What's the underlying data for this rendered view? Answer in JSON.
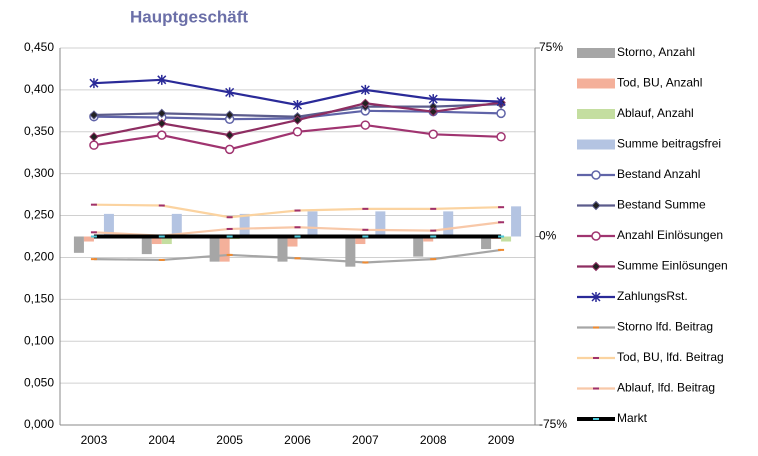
{
  "chart_data": {
    "type": "bar_line",
    "title": "Hauptgeschäft",
    "categories": [
      "2003",
      "2004",
      "2005",
      "2006",
      "2007",
      "2008",
      "2009"
    ],
    "ylim": [
      0,
      0.45
    ],
    "yticks": [
      {
        "value": 0,
        "label": "0,000"
      },
      {
        "value": 0.05,
        "label": "0,050"
      },
      {
        "value": 0.1,
        "label": "0,100"
      },
      {
        "value": 0.15,
        "label": "0,150"
      },
      {
        "value": 0.2,
        "label": "0,200"
      },
      {
        "value": 0.25,
        "label": "0,250"
      },
      {
        "value": 0.3,
        "label": "0,300"
      },
      {
        "value": 0.35,
        "label": "0,350"
      },
      {
        "value": 0.4,
        "label": "0,400"
      },
      {
        "value": 0.45,
        "label": "0,450"
      }
    ],
    "y2lim": [
      -75,
      75
    ],
    "y2ticks": [
      {
        "value": -75,
        "label": "-75%"
      },
      {
        "value": 0,
        "label": "0%"
      },
      {
        "value": 75,
        "label": "75%"
      }
    ],
    "grid": true,
    "legend": "right",
    "series": [
      {
        "name": "Storno, Anzahl",
        "type": "bar",
        "axis": "y2",
        "color": "#a6a6a6",
        "values": [
          -6.5,
          -7,
          -10,
          -10,
          -12,
          -8,
          -5
        ]
      },
      {
        "name": "Tod, BU, Anzahl",
        "type": "bar",
        "axis": "y2",
        "color": "#f4b09a",
        "values": [
          -2,
          -3,
          -10,
          -4,
          -3,
          -2,
          -1
        ]
      },
      {
        "name": "Ablauf, Anzahl",
        "type": "bar",
        "axis": "y2",
        "color": "#c4dea0",
        "values": [
          -0.5,
          -3,
          -1,
          0.5,
          0,
          0,
          -2
        ]
      },
      {
        "name": "Summe beitragsfrei",
        "type": "bar",
        "axis": "y2",
        "color": "#b4c4e2",
        "values": [
          9,
          9,
          9,
          10,
          10,
          10,
          12
        ]
      },
      {
        "name": "Bestand Anzahl",
        "type": "line",
        "marker": "circle",
        "color": "#6064a8",
        "values": [
          0.368,
          0.367,
          0.365,
          0.366,
          0.375,
          0.374,
          0.372
        ]
      },
      {
        "name": "Bestand Summe",
        "type": "line",
        "marker": "diamond",
        "color": "#5c5c8c",
        "values": [
          0.37,
          0.372,
          0.37,
          0.368,
          0.38,
          0.38,
          0.383
        ]
      },
      {
        "name": "Anzahl  Einlösungen",
        "type": "line",
        "marker": "circle",
        "color": "#a03470",
        "values": [
          0.334,
          0.346,
          0.329,
          0.35,
          0.358,
          0.347,
          0.344
        ]
      },
      {
        "name": "Summe Einlösungen",
        "type": "line",
        "marker": "diamond",
        "color": "#8e2e62",
        "values": [
          0.344,
          0.36,
          0.346,
          0.364,
          0.384,
          0.374,
          0.385
        ]
      },
      {
        "name": "ZahlungsRst.",
        "type": "line",
        "marker": "star",
        "color": "#2a2a98",
        "values": [
          0.408,
          0.412,
          0.397,
          0.382,
          0.4,
          0.389,
          0.386
        ]
      },
      {
        "name": "Storno lfd. Beitrag",
        "type": "line",
        "marker": "dash",
        "color": "#a6a6a6",
        "values": [
          0.198,
          0.197,
          0.203,
          0.199,
          0.194,
          0.198,
          0.209
        ]
      },
      {
        "name": "Tod, BU, lfd. Beitrag",
        "type": "line",
        "marker": "dash",
        "color": "#fbd3a0",
        "values": [
          0.263,
          0.262,
          0.248,
          0.256,
          0.258,
          0.258,
          0.26
        ]
      },
      {
        "name": "Ablauf, lfd. Beitrag",
        "type": "line",
        "marker": "dash",
        "color": "#f8c8a8",
        "values": [
          0.23,
          0.226,
          0.234,
          0.236,
          0.233,
          0.232,
          0.242
        ]
      },
      {
        "name": "Markt",
        "type": "line",
        "marker": "dash",
        "color": "#000000",
        "values": [
          0.225,
          0.225,
          0.225,
          0.225,
          0.225,
          0.225,
          0.225
        ]
      }
    ]
  }
}
